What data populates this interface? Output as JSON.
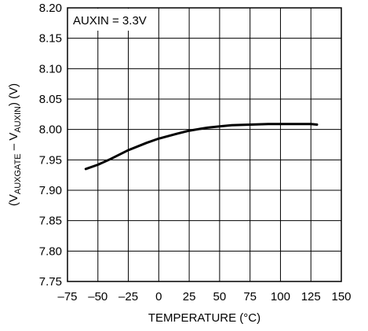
{
  "chart_data": {
    "type": "line",
    "xlabel": "TEMPERATURE (°C)",
    "ylabel_parts": {
      "open": "(V",
      "sub1": "AUXGATE",
      "mid": " – V",
      "sub2": "AUXIN",
      "close": ") (V)"
    },
    "annotation": "AUXIN = 3.3V",
    "xlim": [
      -75,
      150
    ],
    "ylim": [
      7.75,
      8.2
    ],
    "x_ticks": [
      -75,
      -50,
      -25,
      0,
      25,
      50,
      75,
      100,
      125,
      150
    ],
    "x_tick_labels": [
      "–75",
      "–50",
      "–25",
      "0",
      "25",
      "50",
      "75",
      "100",
      "125",
      "150"
    ],
    "y_ticks": [
      7.75,
      7.8,
      7.85,
      7.9,
      7.95,
      8.0,
      8.05,
      8.1,
      8.15,
      8.2
    ],
    "y_tick_labels": [
      "7.75",
      "7.80",
      "7.85",
      "7.90",
      "7.95",
      "8.00",
      "8.05",
      "8.10",
      "8.15",
      "8.20"
    ],
    "grid": true,
    "series": [
      {
        "x": [
          -60,
          -50,
          -40,
          -25,
          -10,
          0,
          15,
          25,
          40,
          50,
          60,
          75,
          90,
          100,
          110,
          125,
          130
        ],
        "y": [
          7.935,
          7.942,
          7.951,
          7.966,
          7.978,
          7.985,
          7.993,
          7.998,
          8.003,
          8.005,
          8.007,
          8.008,
          8.009,
          8.009,
          8.009,
          8.009,
          8.008
        ]
      }
    ]
  }
}
